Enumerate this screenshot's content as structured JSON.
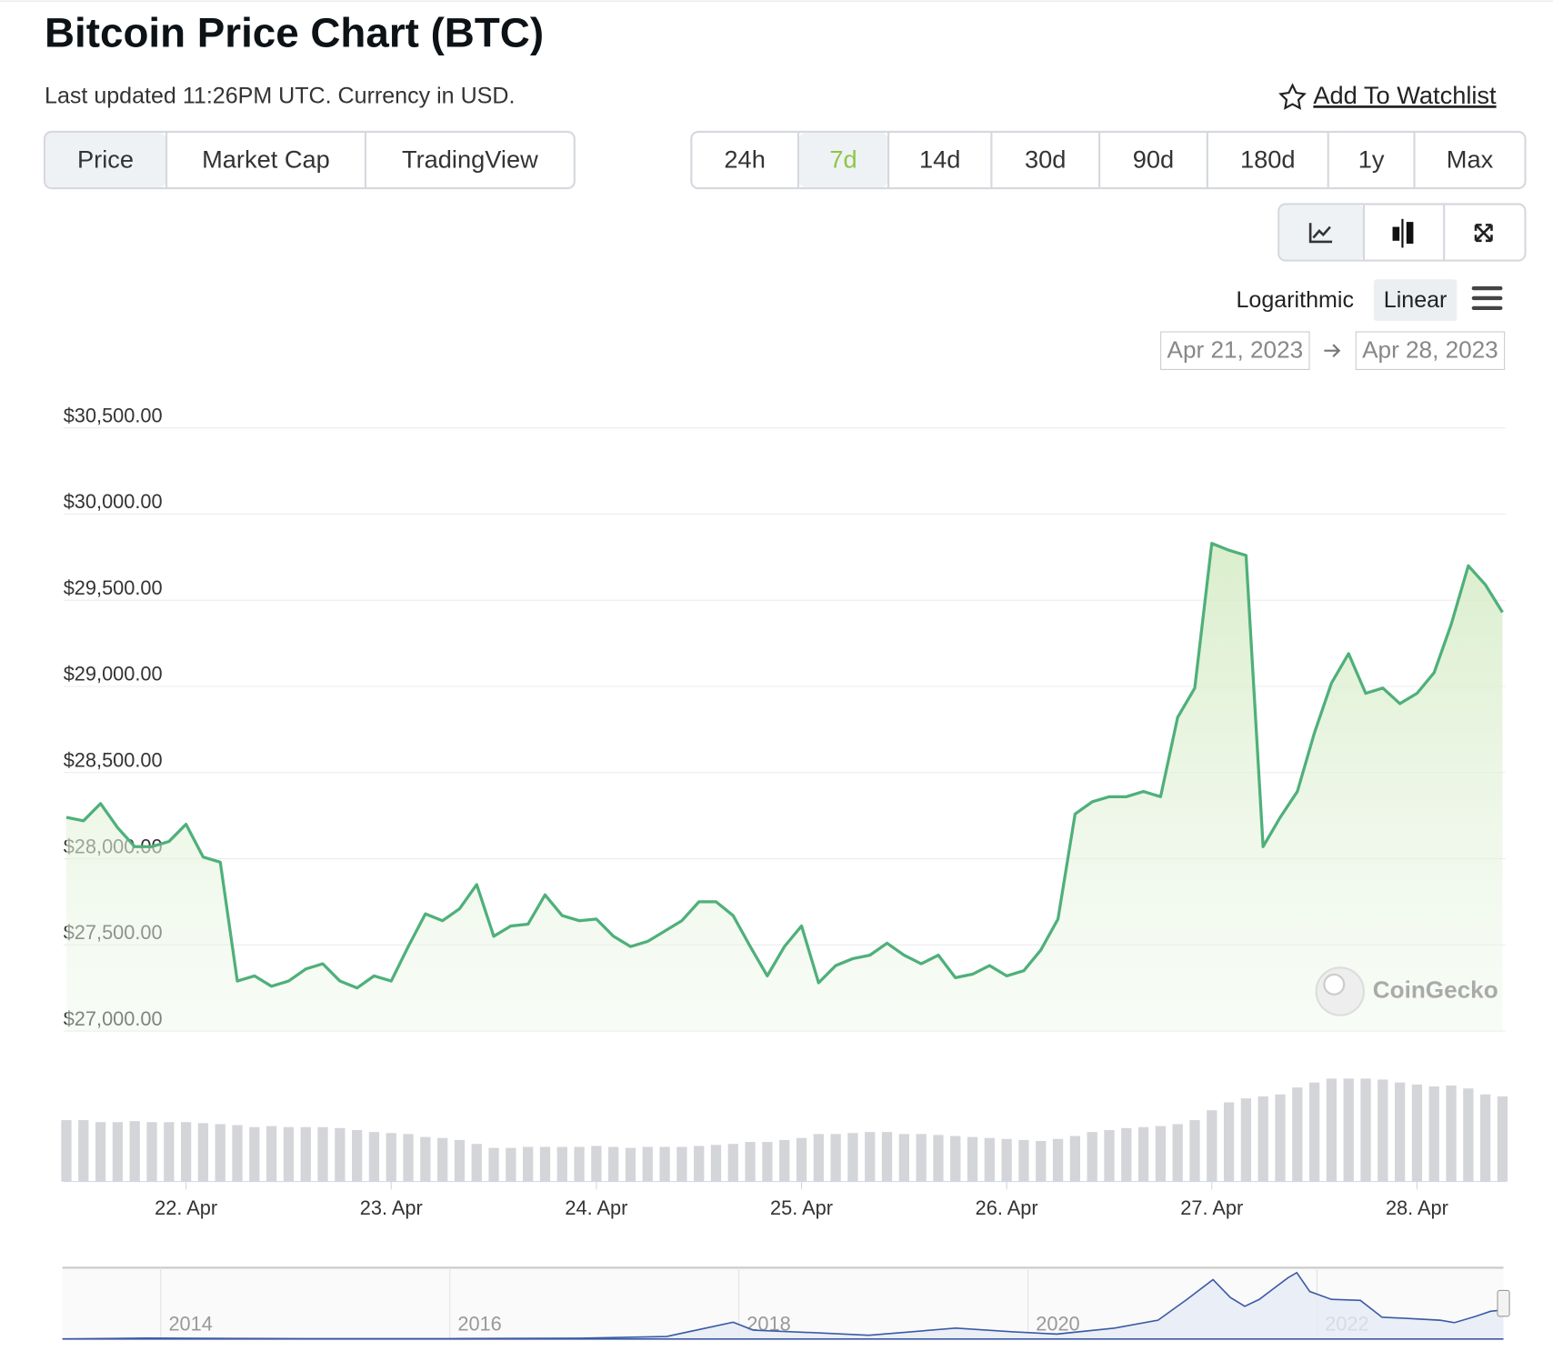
{
  "header": {
    "title": "Bitcoin Price Chart (BTC)",
    "subtitle": "Last updated 11:26PM UTC. Currency in USD.",
    "watchlist": "Add To Watchlist"
  },
  "tabs": [
    {
      "label": "Price",
      "active": true
    },
    {
      "label": "Market Cap",
      "active": false
    },
    {
      "label": "TradingView",
      "active": false
    }
  ],
  "ranges": [
    {
      "label": "24h",
      "active": false
    },
    {
      "label": "7d",
      "active": true
    },
    {
      "label": "14d",
      "active": false
    },
    {
      "label": "30d",
      "active": false
    },
    {
      "label": "90d",
      "active": false
    },
    {
      "label": "180d",
      "active": false
    },
    {
      "label": "1y",
      "active": false
    },
    {
      "label": "Max",
      "active": false
    }
  ],
  "scales": [
    {
      "label": "Logarithmic",
      "active": false
    },
    {
      "label": "Linear",
      "active": true
    }
  ],
  "date_range": {
    "from": "Apr 21, 2023",
    "to": "Apr 28, 2023"
  },
  "watermark": "CoinGecko",
  "chart_data": [
    {
      "type": "line",
      "color": "#4fb07a",
      "grid": true,
      "categories": [
        null,
        null,
        null,
        null,
        null,
        null,
        null,
        "22. Apr",
        null,
        null,
        null,
        null,
        null,
        null,
        null,
        null,
        null,
        null,
        null,
        "23. Apr",
        null,
        null,
        null,
        null,
        null,
        null,
        null,
        null,
        null,
        null,
        null,
        "24. Apr",
        null,
        null,
        null,
        null,
        null,
        null,
        null,
        null,
        null,
        null,
        null,
        "25. Apr",
        null,
        null,
        null,
        null,
        null,
        null,
        null,
        null,
        null,
        null,
        null,
        "26. Apr",
        null,
        null,
        null,
        null,
        null,
        null,
        null,
        null,
        null,
        null,
        null,
        "27. Apr",
        null,
        null,
        null,
        null,
        null,
        null,
        null,
        null,
        null,
        null,
        null,
        "28. Apr",
        null,
        null,
        null,
        null,
        null
      ],
      "values": [
        28240,
        28220,
        28320,
        28180,
        28070,
        28070,
        28100,
        28200,
        28010,
        27980,
        27290,
        27320,
        27260,
        27290,
        27360,
        27390,
        27290,
        27250,
        27320,
        27290,
        27490,
        27680,
        27640,
        27710,
        27850,
        27550,
        27610,
        27620,
        27790,
        27670,
        27640,
        27650,
        27550,
        27490,
        27520,
        27580,
        27640,
        27750,
        27750,
        27670,
        27490,
        27320,
        27490,
        27610,
        27280,
        27380,
        27420,
        27440,
        27510,
        27440,
        27390,
        27440,
        27310,
        27330,
        27380,
        27320,
        27350,
        27470,
        27650,
        28260,
        28330,
        28360,
        28360,
        28390,
        28360,
        28820,
        28990,
        29830,
        29790,
        29760,
        28070,
        28240,
        28390,
        28730,
        29020,
        29190,
        28960,
        28990,
        28900,
        28960,
        29080,
        29360,
        29700,
        29590,
        29430
      ],
      "volume": [
        62,
        62,
        60,
        60,
        61,
        60,
        60,
        60,
        59,
        58,
        57,
        55,
        56,
        55,
        55,
        55,
        54,
        52,
        50,
        49,
        48,
        45,
        44,
        42,
        38,
        34,
        34,
        35,
        35,
        35,
        35,
        36,
        35,
        34,
        35,
        35,
        35,
        36,
        37,
        38,
        40,
        40,
        42,
        44,
        48,
        48,
        49,
        50,
        50,
        48,
        48,
        47,
        46,
        45,
        44,
        43,
        42,
        41,
        43,
        46,
        50,
        52,
        54,
        55,
        56,
        58,
        62,
        72,
        80,
        84,
        86,
        88,
        95,
        100,
        104,
        104,
        104,
        103,
        100,
        98,
        96,
        97,
        94,
        88,
        86
      ],
      "ylim": [
        27000,
        30500
      ],
      "yticks": [
        {
          "value": 27000,
          "label": "$27,000.00"
        },
        {
          "value": 27500,
          "label": "$27,500.00"
        },
        {
          "value": 28000,
          "label": "$28,000.00"
        },
        {
          "value": 28500,
          "label": "$28,500.00"
        },
        {
          "value": 29000,
          "label": "$29,000.00"
        },
        {
          "value": 29500,
          "label": "$29,500.00"
        },
        {
          "value": 30000,
          "label": "$30,000.00"
        },
        {
          "value": 30500,
          "label": "$30,500.00"
        }
      ]
    },
    {
      "type": "area",
      "color": "#3c5ba6",
      "x": [
        2013.32,
        2013.9,
        2014.5,
        2015,
        2016,
        2016.9,
        2017.5,
        2017.96,
        2018.1,
        2018.5,
        2018.9,
        2019.5,
        2019.9,
        2020.2,
        2020.6,
        2020.9,
        2021.1,
        2021.28,
        2021.4,
        2021.5,
        2021.6,
        2021.8,
        2021.86,
        2021.95,
        2022.1,
        2022.3,
        2022.45,
        2022.6,
        2022.85,
        2022.95,
        2023.1,
        2023.2,
        2023.29
      ],
      "values": [
        100,
        900,
        600,
        300,
        430,
        800,
        2500,
        17000,
        9000,
        6500,
        3800,
        11000,
        7200,
        5000,
        11000,
        19000,
        40000,
        60000,
        42000,
        33000,
        40000,
        62000,
        67000,
        48000,
        40000,
        39000,
        22000,
        21000,
        19000,
        16500,
        23000,
        28000,
        29400
      ],
      "xlim": [
        2013.32,
        2023.29
      ],
      "ylim": [
        0,
        70000
      ],
      "xticks": [
        2014,
        2016,
        2018,
        2020,
        2022
      ]
    }
  ]
}
